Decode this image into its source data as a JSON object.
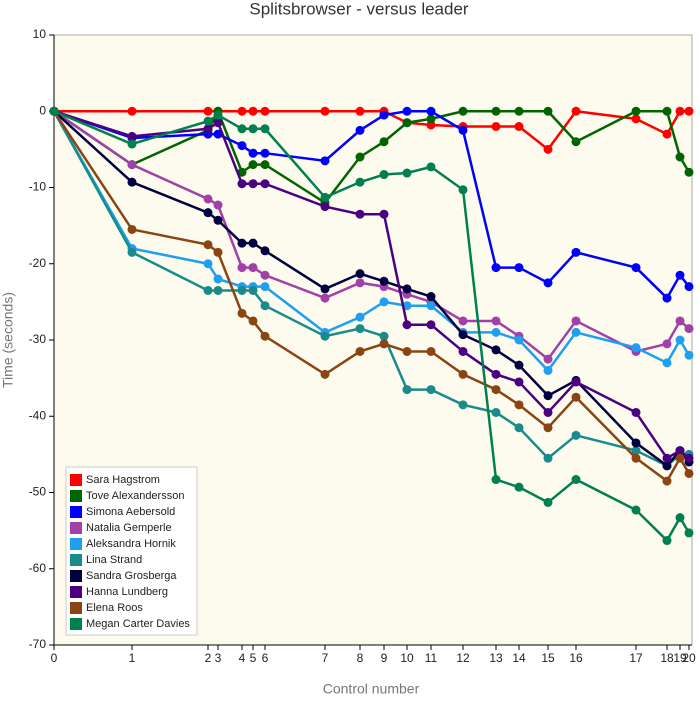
{
  "chart_data": {
    "type": "line",
    "title": "Splitsbrowser - versus leader",
    "x_label": "Control number",
    "y_label": "Time (seconds)",
    "x": [
      0,
      78,
      154,
      164,
      188,
      199,
      211,
      271,
      306,
      330,
      353,
      377,
      409,
      442,
      465,
      494,
      522,
      582,
      613,
      626,
      635
    ],
    "xlim": [
      0,
      635
    ],
    "xticks": [
      {
        "value": 0,
        "label": "0"
      },
      {
        "value": 78,
        "label": "1"
      },
      {
        "value": 154,
        "label": "2"
      },
      {
        "value": 164,
        "label": "3"
      },
      {
        "value": 188,
        "label": "4"
      },
      {
        "value": 199,
        "label": "5"
      },
      {
        "value": 211,
        "label": "6"
      },
      {
        "value": 271,
        "label": "7"
      },
      {
        "value": 306,
        "label": "8"
      },
      {
        "value": 330,
        "label": "9"
      },
      {
        "value": 353,
        "label": "10"
      },
      {
        "value": 377,
        "label": "11"
      },
      {
        "value": 409,
        "label": "12"
      },
      {
        "value": 442,
        "label": "13"
      },
      {
        "value": 465,
        "label": "14"
      },
      {
        "value": 494,
        "label": "15"
      },
      {
        "value": 522,
        "label": "16"
      },
      {
        "value": 582,
        "label": "17"
      },
      {
        "value": 613,
        "label": "18"
      },
      {
        "value": 626,
        "label": "19"
      },
      {
        "value": 635,
        "label": "20"
      }
    ],
    "ylim": [
      -70,
      10
    ],
    "yticks": [
      10,
      0,
      -10,
      -20,
      -30,
      -40,
      -50,
      -60,
      -70
    ],
    "legend": "bottom-left",
    "series": [
      {
        "name": "Sara Hagstrom",
        "color": "#ff0000",
        "values": [
          0,
          0,
          0,
          0,
          0,
          0,
          0,
          0,
          0,
          0,
          -1.5,
          -1.8,
          -2,
          -2,
          -2,
          -5,
          0,
          -1,
          -3,
          0,
          0
        ]
      },
      {
        "name": "Tove Alexandersson",
        "color": "#006400",
        "values": [
          0,
          -7,
          -2.5,
          0,
          -8,
          -7,
          -7,
          -12,
          -6,
          -4,
          -1.5,
          -1,
          0,
          0,
          0,
          0,
          -4,
          0,
          0,
          -6,
          -8
        ]
      },
      {
        "name": "Simona Aebersold",
        "color": "#0000ff",
        "values": [
          0,
          -3.5,
          -3,
          -3,
          -4.5,
          -5.5,
          -5.5,
          -6.5,
          -2.5,
          -0.5,
          0,
          0,
          -2.5,
          -20.5,
          -20.5,
          -22.5,
          -18.5,
          -20.5,
          -24.5,
          -21.5,
          -23
        ]
      },
      {
        "name": "Natalia Gemperle",
        "color": "#a040a8",
        "values": [
          0,
          -7,
          -11.5,
          -12.3,
          -20.5,
          -20.5,
          -21.5,
          -24.5,
          -22.5,
          -23,
          -24,
          -25,
          -27.5,
          -27.5,
          -29.5,
          -32.5,
          -27.5,
          -31.5,
          -30.5,
          -27.5,
          -28.5
        ]
      },
      {
        "name": "Aleksandra Hornik",
        "color": "#1e9ff0",
        "values": [
          0,
          -18,
          -20,
          -22,
          -23,
          -23,
          -23,
          -29,
          -27,
          -25,
          -25.5,
          -25.5,
          -29,
          -29,
          -30,
          -34,
          -29,
          -31,
          -33,
          -30,
          -32
        ]
      },
      {
        "name": "Lina Strand",
        "color": "#1a8a8a",
        "values": [
          0,
          -18.5,
          -23.5,
          -23.5,
          -23.5,
          -23.5,
          -25.5,
          -29.5,
          -28.5,
          -29.5,
          -36.5,
          -36.5,
          -38.5,
          -39.5,
          -41.5,
          -45.5,
          -42.5,
          -44.5,
          -46.5,
          -45,
          -45
        ]
      },
      {
        "name": "Sandra Grosberga",
        "color": "#000040",
        "values": [
          0,
          -9.3,
          -13.3,
          -14.3,
          -17.3,
          -17.3,
          -18.3,
          -23.3,
          -21.3,
          -22.3,
          -23.3,
          -24.3,
          -29.3,
          -31.3,
          -33.3,
          -37.3,
          -35.3,
          -43.5,
          -46.5,
          -44.5,
          -46
        ]
      },
      {
        "name": "Hanna Lundberg",
        "color": "#4b0082",
        "values": [
          0,
          -3.3,
          -2.3,
          -1.5,
          -9.5,
          -9.5,
          -9.5,
          -12.5,
          -13.5,
          -13.5,
          -28,
          -28,
          -31.5,
          -34.5,
          -35.5,
          -39.5,
          -35.5,
          -39.5,
          -45.5,
          -44.5,
          -45.5
        ]
      },
      {
        "name": "Elena Roos",
        "color": "#8b4513",
        "values": [
          0,
          -15.5,
          -17.5,
          -18.5,
          -26.5,
          -27.5,
          -29.5,
          -34.5,
          -31.5,
          -30.5,
          -31.5,
          -31.5,
          -34.5,
          -36.5,
          -38.5,
          -41.5,
          -37.5,
          -45.5,
          -48.5,
          -45.5,
          -47.5
        ]
      },
      {
        "name": "Megan Carter Davies",
        "color": "#008050",
        "values": [
          0,
          -4.3,
          -1.3,
          -0.5,
          -2.3,
          -2.3,
          -2.3,
          -11.3,
          -9.3,
          -8.3,
          -8.1,
          -7.3,
          -10.3,
          -48.3,
          -49.3,
          -51.3,
          -48.3,
          -52.3,
          -56.3,
          -53.3,
          -55.3
        ]
      }
    ]
  }
}
